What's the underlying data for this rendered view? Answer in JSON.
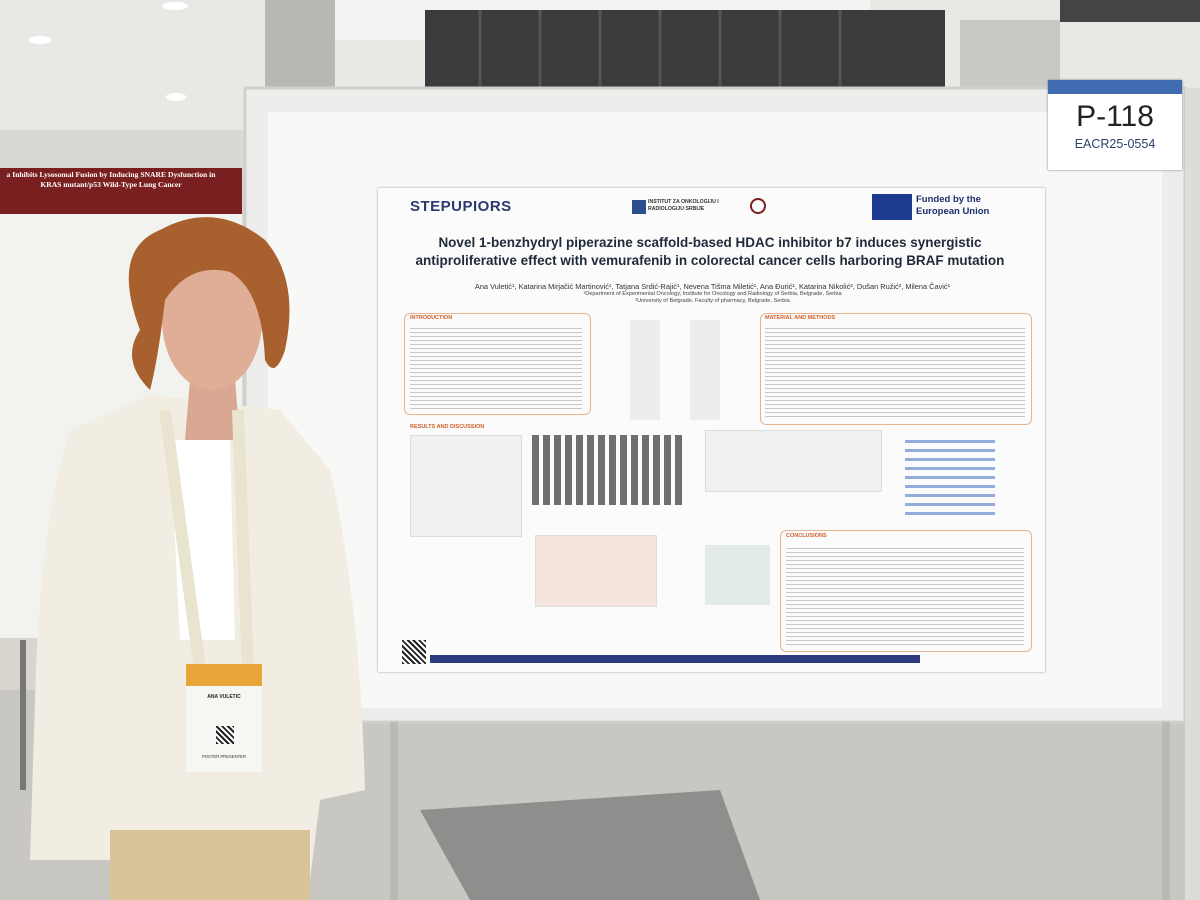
{
  "sign": {
    "number": "P-118",
    "abstract_id": "EACR25-0554"
  },
  "left_poster": {
    "title": "a Inhibits Lysosomal Fusion by Inducing SNARE Dysfunction in KRAS mutant/p53 Wild-Type Lung Cancer"
  },
  "poster": {
    "logo_project": "STEPUPIORS",
    "logo_institute": "INSTITUT ZA ONKOLOGIJU I RADIOLOGIJU SRBIJE",
    "logo_funding": "Funded by the European Union",
    "title": "Novel 1-benzhydryl piperazine scaffold-based HDAC inhibitor b7 induces synergistic antiproliferative effect with vemurafenib in colorectal cancer cells harboring BRAF mutation",
    "authors": "Ana Vuletić¹, Katarina Mirjačić Martinović¹, Tatjana Srdić-Rajić¹, Nevena Tišma Miletić¹, Ana Đurić¹, Katarina Nikolić², Dušan Ružić², Milena Čavić¹",
    "affiliations": [
      "¹Department of Experimental Oncology, Institute for Oncology and Radiology of Serbia, Belgrade, Serbia",
      "²University of Belgrade, Faculty of pharmacy, Belgrade, Serbia"
    ],
    "sections": [
      "INTRODUCTION",
      "MATERIAL AND METHODS",
      "RESULTS AND DISCUSSION",
      "CONCLUSIONS"
    ]
  },
  "badge": {
    "name": "ANA VULETIC",
    "role": "POSTER PRESENTER"
  }
}
